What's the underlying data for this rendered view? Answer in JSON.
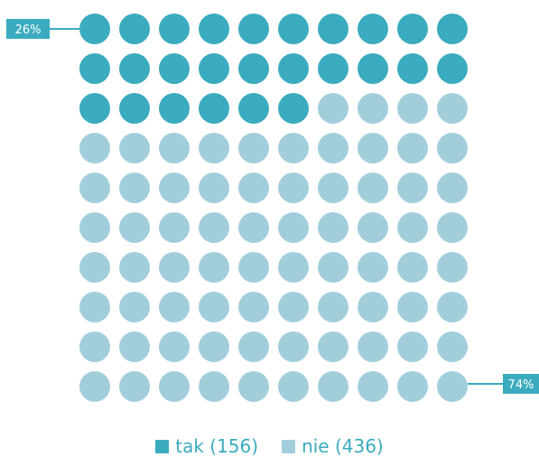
{
  "chart_data": {
    "type": "waffle",
    "grid": {
      "rows": 10,
      "cols": 10
    },
    "series": [
      {
        "name": "tak",
        "count": 156,
        "percent_label": "26%",
        "color": "#3babbf",
        "cells": 26
      },
      {
        "name": "nie",
        "count": 436,
        "percent_label": "74%",
        "color": "#a2cedc",
        "cells": 74
      }
    ],
    "legend": [
      {
        "label": "tak (156)",
        "color": "#3babbf"
      },
      {
        "label": "nie (436)",
        "color": "#a2cedc"
      }
    ],
    "legend_position": "bottom"
  }
}
